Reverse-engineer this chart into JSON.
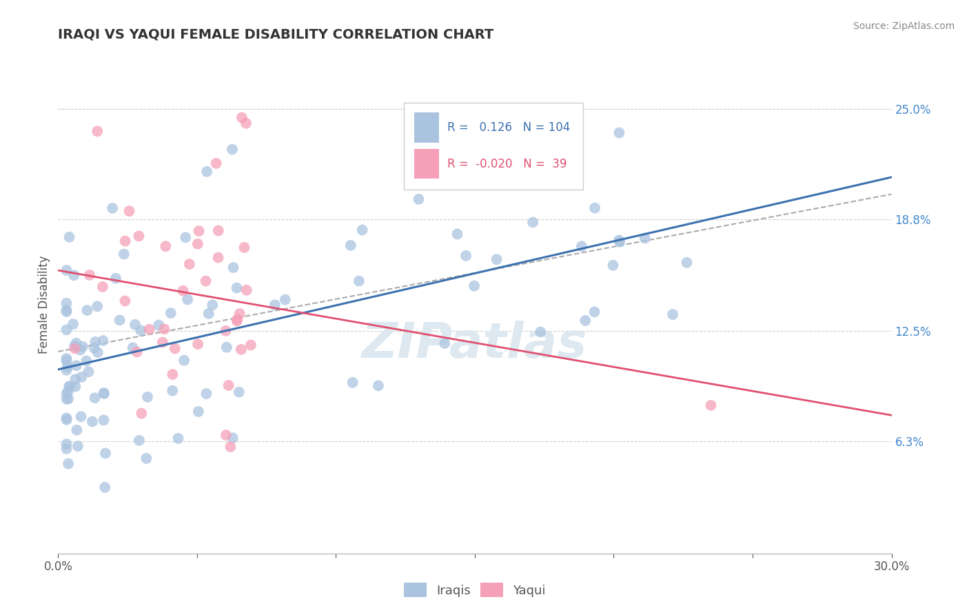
{
  "title": "IRAQI VS YAQUI FEMALE DISABILITY CORRELATION CHART",
  "source_text": "Source: ZipAtlas.com",
  "ylabel": "Female Disability",
  "x_min": 0.0,
  "x_max": 0.3,
  "y_min": 0.0,
  "y_max": 0.28,
  "y_tick_labels_right": [
    "25.0%",
    "18.8%",
    "12.5%",
    "6.3%"
  ],
  "y_tick_values_right": [
    0.25,
    0.188,
    0.125,
    0.063
  ],
  "iraqi_R": 0.126,
  "iraqi_N": 104,
  "yaqui_R": -0.02,
  "yaqui_N": 39,
  "iraqi_color": "#aac4e0",
  "yaqui_color": "#f5a0b8",
  "iraqi_line_color": "#3d72b0",
  "yaqui_line_color": "#e05070",
  "watermark_color": "#dde8f0",
  "title_color": "#333333",
  "source_color": "#888888",
  "axis_label_color": "#555555",
  "right_axis_color": "#4488cc",
  "grid_color": "#d0d0d0",
  "bottom_line_color": "#bbbbbb"
}
